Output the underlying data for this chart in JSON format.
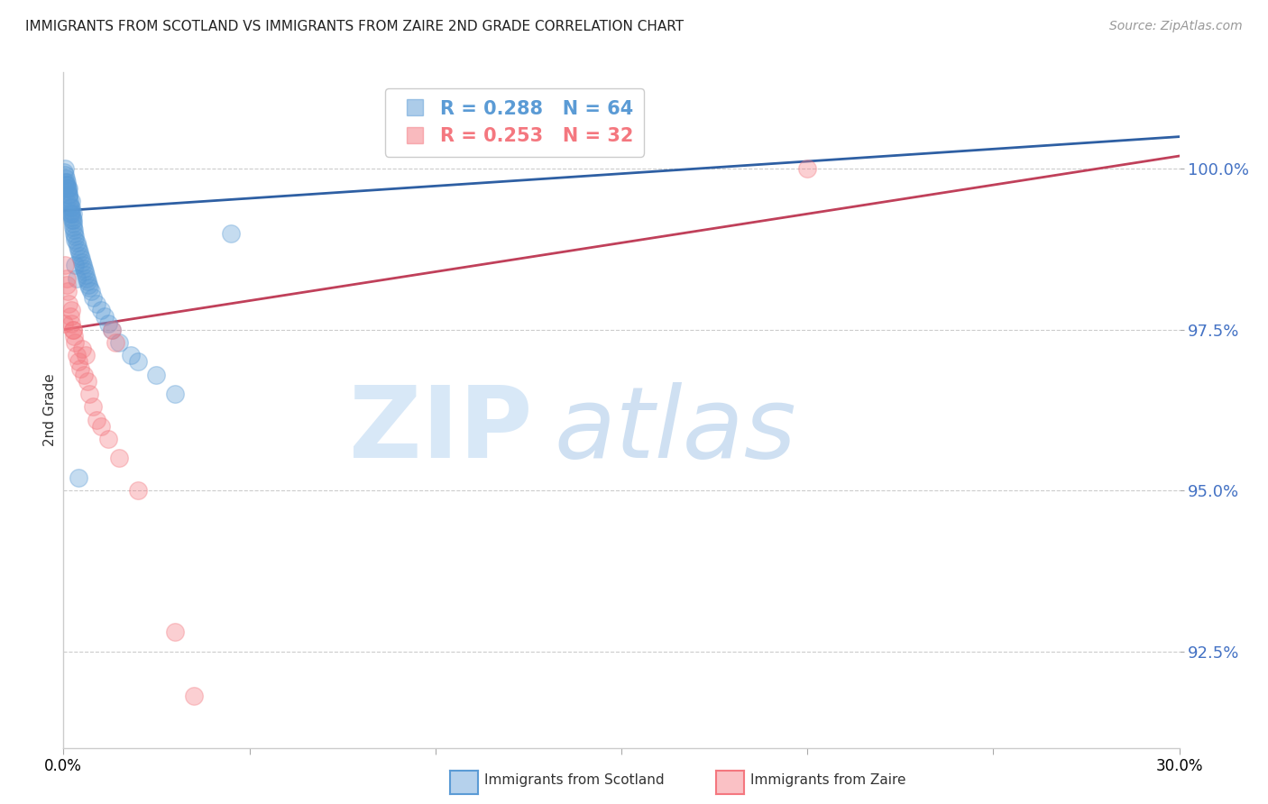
{
  "title": "IMMIGRANTS FROM SCOTLAND VS IMMIGRANTS FROM ZAIRE 2ND GRADE CORRELATION CHART",
  "source": "Source: ZipAtlas.com",
  "ylabel": "2nd Grade",
  "yaxis_label_color": "#4472c4",
  "xlim": [
    0.0,
    30.0
  ],
  "ylim": [
    91.0,
    101.5
  ],
  "yticks": [
    92.5,
    95.0,
    97.5,
    100.0
  ],
  "scotland_color": "#5b9bd5",
  "scotland_line_color": "#2e5fa3",
  "zaire_color": "#f4777f",
  "zaire_line_color": "#c0405a",
  "scotland_R": 0.288,
  "scotland_N": 64,
  "zaire_R": 0.253,
  "zaire_N": 32,
  "background_color": "#ffffff",
  "scotland_x": [
    0.02,
    0.03,
    0.04,
    0.05,
    0.06,
    0.07,
    0.08,
    0.09,
    0.1,
    0.11,
    0.12,
    0.13,
    0.14,
    0.15,
    0.15,
    0.16,
    0.17,
    0.18,
    0.19,
    0.2,
    0.2,
    0.21,
    0.22,
    0.23,
    0.24,
    0.25,
    0.25,
    0.26,
    0.27,
    0.28,
    0.29,
    0.3,
    0.32,
    0.35,
    0.38,
    0.4,
    0.42,
    0.45,
    0.48,
    0.5,
    0.52,
    0.55,
    0.58,
    0.6,
    0.62,
    0.65,
    0.68,
    0.7,
    0.75,
    0.8,
    0.9,
    1.0,
    1.1,
    1.2,
    1.3,
    1.5,
    1.8,
    2.0,
    2.5,
    3.0,
    0.3,
    0.35,
    0.4,
    4.5
  ],
  "scotland_y": [
    99.95,
    100.0,
    99.9,
    99.8,
    99.85,
    99.75,
    99.7,
    99.8,
    99.75,
    99.7,
    99.65,
    99.6,
    99.55,
    99.7,
    99.6,
    99.5,
    99.45,
    99.4,
    99.3,
    99.5,
    99.4,
    99.35,
    99.3,
    99.25,
    99.2,
    99.3,
    99.2,
    99.15,
    99.1,
    99.05,
    99.0,
    98.95,
    98.9,
    98.85,
    98.8,
    98.75,
    98.7,
    98.65,
    98.6,
    98.55,
    98.5,
    98.45,
    98.4,
    98.35,
    98.3,
    98.25,
    98.2,
    98.15,
    98.1,
    98.0,
    97.9,
    97.8,
    97.7,
    97.6,
    97.5,
    97.3,
    97.1,
    97.0,
    96.8,
    96.5,
    98.5,
    98.3,
    95.2,
    99.0
  ],
  "zaire_x": [
    0.02,
    0.05,
    0.08,
    0.1,
    0.12,
    0.15,
    0.18,
    0.2,
    0.22,
    0.25,
    0.28,
    0.3,
    0.35,
    0.4,
    0.45,
    0.5,
    0.55,
    0.6,
    0.65,
    0.7,
    0.8,
    0.9,
    1.0,
    1.2,
    1.5,
    2.0,
    1.3,
    1.4,
    3.0,
    3.5,
    20.0,
    0.25
  ],
  "zaire_y": [
    97.6,
    98.5,
    98.3,
    98.2,
    98.1,
    97.9,
    97.7,
    97.8,
    97.6,
    97.5,
    97.4,
    97.3,
    97.1,
    97.0,
    96.9,
    97.2,
    96.8,
    97.1,
    96.7,
    96.5,
    96.3,
    96.1,
    96.0,
    95.8,
    95.5,
    95.0,
    97.5,
    97.3,
    92.8,
    91.8,
    100.0,
    97.5
  ]
}
